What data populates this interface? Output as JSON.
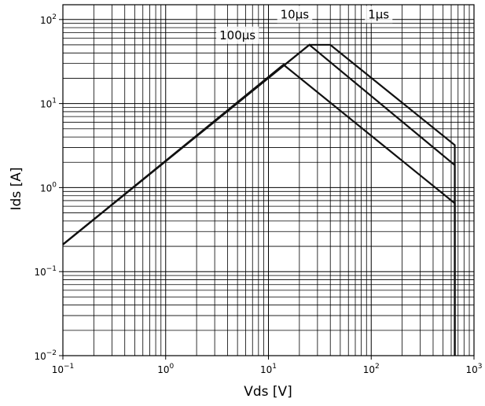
{
  "chart_data": {
    "type": "line",
    "xlabel": "Vds [V]",
    "ylabel": "Ids [A]",
    "xscale": "log",
    "yscale": "log",
    "xlim": [
      0.1,
      1000
    ],
    "ylim": [
      0.01,
      150
    ],
    "grid": "major and minor",
    "x_ticks": [
      {
        "value": 0.1,
        "base": "10",
        "exp": "−1"
      },
      {
        "value": 1,
        "base": "10",
        "exp": "0"
      },
      {
        "value": 10,
        "base": "10",
        "exp": "1"
      },
      {
        "value": 100,
        "base": "10",
        "exp": "2"
      },
      {
        "value": 1000,
        "base": "10",
        "exp": "3"
      }
    ],
    "y_ticks": [
      {
        "value": 0.01,
        "base": "10",
        "exp": "−2"
      },
      {
        "value": 0.1,
        "base": "10",
        "exp": "−1"
      },
      {
        "value": 1,
        "base": "10",
        "exp": "0"
      },
      {
        "value": 10,
        "base": "10",
        "exp": "1"
      },
      {
        "value": 100,
        "base": "10",
        "exp": "2"
      }
    ],
    "series": [
      {
        "name": "100µs",
        "x": [
          0.1,
          14,
          650,
          650
        ],
        "y": [
          0.21,
          29,
          0.65,
          0.01
        ]
      },
      {
        "name": "10µs",
        "x": [
          0.1,
          25,
          650,
          650
        ],
        "y": [
          0.21,
          50,
          1.85,
          0.01
        ]
      },
      {
        "name": "1µs",
        "x": [
          0.1,
          25,
          40,
          650,
          650
        ],
        "y": [
          0.21,
          50,
          50,
          3.2,
          0.01
        ]
      }
    ],
    "annotations": [
      {
        "text": "100µs",
        "x": 5,
        "y": 65
      },
      {
        "text": "10µs",
        "x": 18,
        "y": 115
      },
      {
        "text": "1µs",
        "x": 118,
        "y": 115
      }
    ]
  }
}
